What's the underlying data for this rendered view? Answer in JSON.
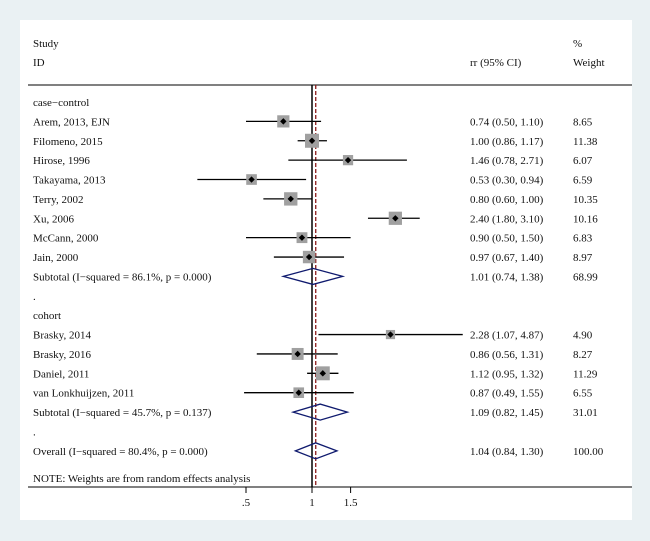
{
  "chart_data": {
    "type": "forest",
    "header": {
      "study_line1": "Study",
      "study_line2": "ID",
      "ci_label": "rr (95% CI)",
      "weight_line1": "%",
      "weight_line2": "Weight"
    },
    "rows": [
      {
        "kind": "group",
        "label": "case−control"
      },
      {
        "kind": "study",
        "label": "Arem, 2013, EJN",
        "est": 0.74,
        "lo": 0.5,
        "hi": 1.1,
        "ci_text": "0.74 (0.50, 1.10)",
        "weight": "8.65"
      },
      {
        "kind": "study",
        "label": "Filomeno, 2015",
        "est": 1.0,
        "lo": 0.86,
        "hi": 1.17,
        "ci_text": "1.00 (0.86, 1.17)",
        "weight": "11.38"
      },
      {
        "kind": "study",
        "label": "Hirose, 1996",
        "est": 1.46,
        "lo": 0.78,
        "hi": 2.71,
        "ci_text": "1.46 (0.78, 2.71)",
        "weight": "6.07"
      },
      {
        "kind": "study",
        "label": "Takayama, 2013",
        "est": 0.53,
        "lo": 0.3,
        "hi": 0.94,
        "ci_text": "0.53 (0.30, 0.94)",
        "weight": "6.59"
      },
      {
        "kind": "study",
        "label": "Terry, 2002",
        "est": 0.8,
        "lo": 0.6,
        "hi": 1.0,
        "ci_text": "0.80 (0.60, 1.00)",
        "weight": "10.35"
      },
      {
        "kind": "study",
        "label": "Xu, 2006",
        "est": 2.4,
        "lo": 1.8,
        "hi": 3.1,
        "ci_text": "2.40 (1.80, 3.10)",
        "weight": "10.16"
      },
      {
        "kind": "study",
        "label": "McCann, 2000",
        "est": 0.9,
        "lo": 0.5,
        "hi": 1.5,
        "ci_text": "0.90 (0.50, 1.50)",
        "weight": "6.83"
      },
      {
        "kind": "study",
        "label": "Jain, 2000",
        "est": 0.97,
        "lo": 0.67,
        "hi": 1.4,
        "ci_text": "0.97 (0.67, 1.40)",
        "weight": "8.97"
      },
      {
        "kind": "subtotal",
        "label": "Subtotal  (I−squared = 86.1%, p = 0.000)",
        "est": 1.01,
        "lo": 0.74,
        "hi": 1.38,
        "ci_text": "1.01 (0.74, 1.38)",
        "weight": "68.99"
      },
      {
        "kind": "spacer",
        "label": "."
      },
      {
        "kind": "group",
        "label": "cohort"
      },
      {
        "kind": "study",
        "label": "Brasky, 2014",
        "est": 2.28,
        "lo": 1.07,
        "hi": 4.87,
        "ci_text": "2.28 (1.07, 4.87)",
        "weight": "4.90"
      },
      {
        "kind": "study",
        "label": "Brasky, 2016",
        "est": 0.86,
        "lo": 0.56,
        "hi": 1.31,
        "ci_text": "0.86 (0.56, 1.31)",
        "weight": "8.27"
      },
      {
        "kind": "study",
        "label": "Daniel, 2011",
        "est": 1.12,
        "lo": 0.95,
        "hi": 1.32,
        "ci_text": "1.12 (0.95, 1.32)",
        "weight": "11.29"
      },
      {
        "kind": "study",
        "label": "van Lonkhuijzen, 2011",
        "est": 0.87,
        "lo": 0.49,
        "hi": 1.55,
        "ci_text": "0.87 (0.49, 1.55)",
        "weight": "6.55"
      },
      {
        "kind": "subtotal",
        "label": "Subtotal  (I−squared = 45.7%, p = 0.137)",
        "est": 1.09,
        "lo": 0.82,
        "hi": 1.45,
        "ci_text": "1.09 (0.82, 1.45)",
        "weight": "31.01"
      },
      {
        "kind": "spacer",
        "label": "."
      },
      {
        "kind": "overall",
        "label": "Overall  (I−squared = 80.4%, p = 0.000)",
        "est": 1.04,
        "lo": 0.84,
        "hi": 1.3,
        "ci_text": "1.04 (0.84, 1.30)",
        "weight": "100.00"
      }
    ],
    "note": "NOTE: Weights are from random effects analysis",
    "x_scale": "log",
    "x_ticks": [
      {
        "value": 0.5,
        "label": ".5"
      },
      {
        "value": 1,
        "label": "1"
      },
      {
        "value": 1.5,
        "label": "1.5"
      }
    ],
    "null_line": 1,
    "overall_line": 1.04,
    "colors": {
      "background": "#eaf1f3",
      "panel": "#ffffff",
      "ci_line": "#000000",
      "weight_box": "#a0a0a0",
      "diamond": "#0f1a6e",
      "overall_line": "#8b1a1a"
    }
  }
}
